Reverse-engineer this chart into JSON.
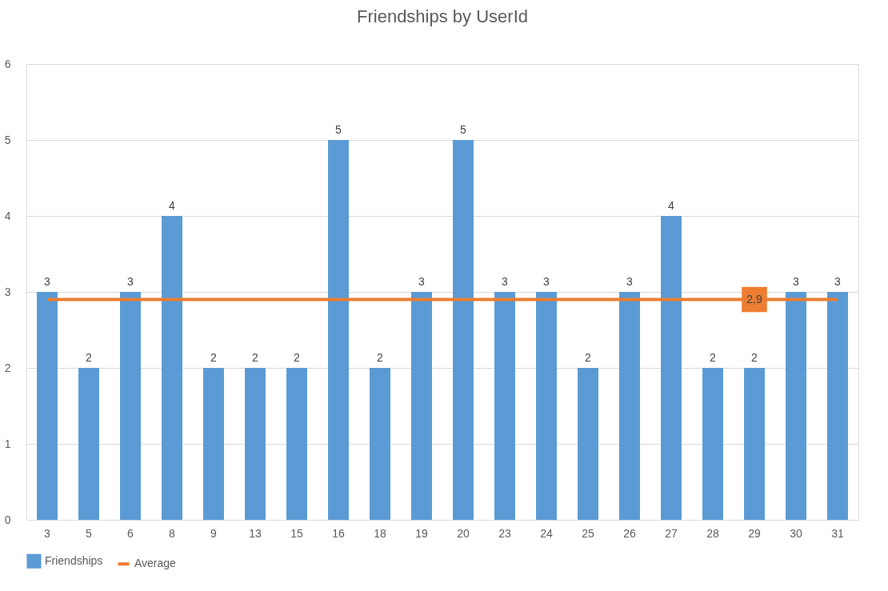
{
  "chart_data": {
    "type": "bar",
    "title": "Friendships by UserId",
    "categories": [
      "3",
      "5",
      "6",
      "8",
      "9",
      "13",
      "15",
      "16",
      "18",
      "19",
      "20",
      "23",
      "24",
      "25",
      "26",
      "27",
      "28",
      "29",
      "30",
      "31"
    ],
    "series": [
      {
        "name": "Friendships",
        "color": "#5b9bd5",
        "values": [
          3,
          2,
          3,
          4,
          2,
          2,
          2,
          5,
          2,
          3,
          5,
          3,
          3,
          2,
          3,
          4,
          2,
          2,
          3,
          3
        ],
        "value_labels": [
          "3",
          "2",
          "3",
          "4",
          "2",
          "2",
          "2",
          "5",
          "2",
          "3",
          "5",
          "3",
          "3",
          "2",
          "3",
          "4",
          "2",
          "2",
          "3",
          "3"
        ]
      },
      {
        "name": "Average",
        "type": "line",
        "color": "#ed7d31",
        "values": [
          2.9,
          2.9,
          2.9,
          2.9,
          2.9,
          2.9,
          2.9,
          2.9,
          2.9,
          2.9,
          2.9,
          2.9,
          2.9,
          2.9,
          2.9,
          2.9,
          2.9,
          2.9,
          2.9,
          2.9
        ],
        "value_labels": [
          null,
          null,
          null,
          null,
          null,
          null,
          null,
          null,
          null,
          null,
          null,
          null,
          null,
          null,
          null,
          null,
          null,
          "2,9",
          null,
          null
        ]
      }
    ],
    "ylim": [
      0,
      6
    ],
    "yticks": [
      0,
      1,
      2,
      3,
      4,
      5,
      6
    ],
    "grid": "y",
    "legend": "bottom"
  }
}
